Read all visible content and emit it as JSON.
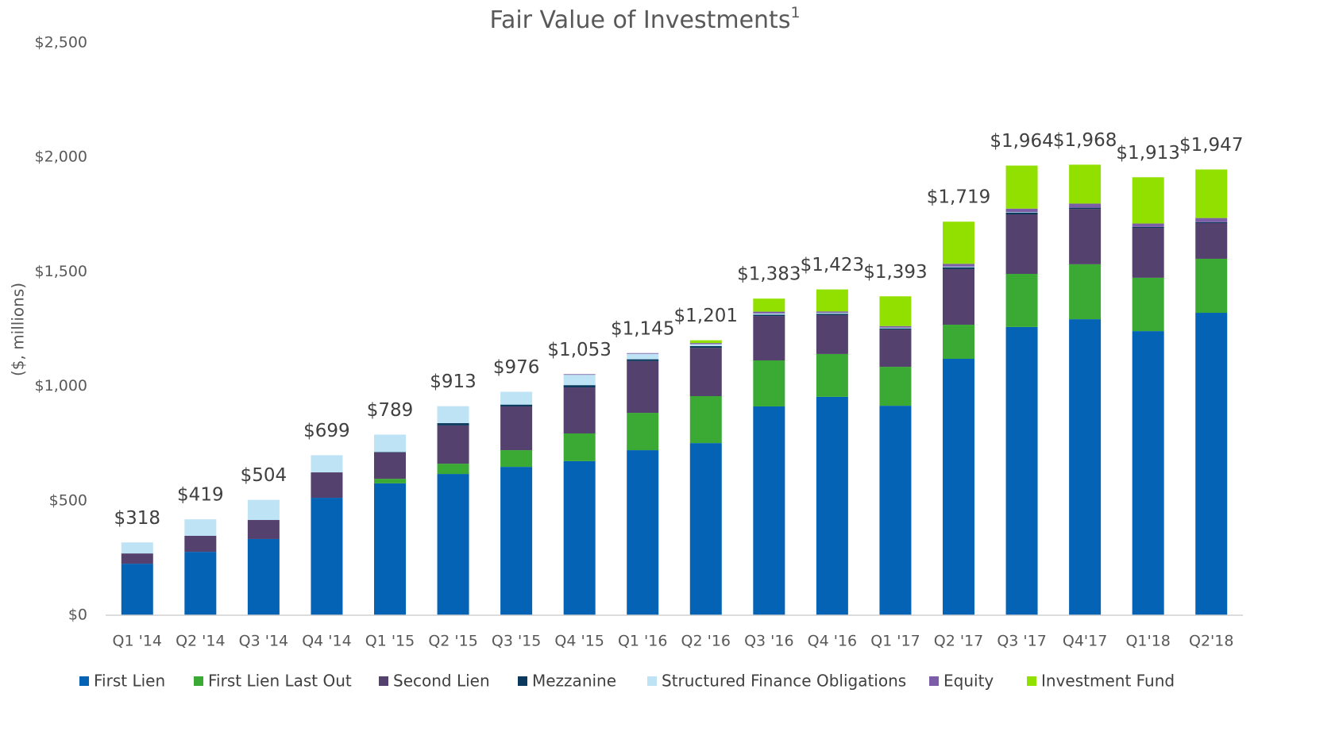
{
  "chart_data": {
    "type": "stacked_bar",
    "title": "Fair Value of Investments",
    "title_footnote": "1",
    "y_label": "($, millions)",
    "categories": [
      "Q1 '14",
      "Q2 '14",
      "Q3 '14",
      "Q4 '14",
      "Q1 '15",
      "Q2 '15",
      "Q3 '15",
      "Q4 '15",
      "Q1 '16",
      "Q2 '16",
      "Q3 '16",
      "Q4 '16",
      "Q1 '17",
      "Q2 '17",
      "Q3 '17",
      "Q4'17",
      "Q1'18",
      "Q2'18"
    ],
    "series": [
      {
        "name": "First Lien",
        "color": "#0563b5",
        "values": [
          225,
          277,
          333,
          513,
          576,
          617,
          648,
          673,
          721,
          752,
          912,
          954,
          915,
          1120,
          1259,
          1293,
          1241,
          1321
        ]
      },
      {
        "name": "First Lien Last Out",
        "color": "#3aaa35",
        "values": [
          0,
          0,
          0,
          0,
          20,
          45,
          73,
          121,
          163,
          205,
          201,
          187,
          170,
          149,
          232,
          240,
          233,
          236
        ]
      },
      {
        "name": "Second Lien",
        "color": "#54416e",
        "values": [
          45,
          70,
          83,
          111,
          115,
          167,
          191,
          201,
          226,
          211,
          194,
          170,
          163,
          243,
          260,
          242,
          218,
          156
        ]
      },
      {
        "name": "Mezzanine",
        "color": "#0b3a5e",
        "values": [
          0,
          0,
          0,
          0,
          2,
          10,
          8,
          10,
          8,
          8,
          6,
          6,
          5,
          8,
          8,
          5,
          4,
          4
        ]
      },
      {
        "name": "Structured Finance Obligations",
        "color": "#bde3f5",
        "values": [
          48,
          72,
          88,
          75,
          76,
          74,
          56,
          45,
          24,
          8,
          5,
          4,
          3,
          3,
          2,
          0,
          0,
          0
        ]
      },
      {
        "name": "Equity",
        "color": "#7b5ea7",
        "values": [
          0,
          0,
          0,
          0,
          0,
          0,
          0,
          3,
          3,
          5,
          8,
          6,
          7,
          12,
          15,
          18,
          15,
          18
        ]
      },
      {
        "name": "Investment Fund",
        "color": "#92e000",
        "values": [
          0,
          0,
          0,
          0,
          0,
          0,
          0,
          0,
          0,
          12,
          57,
          96,
          130,
          184,
          188,
          170,
          202,
          212
        ]
      }
    ],
    "totals": [
      318,
      419,
      504,
      699,
      789,
      913,
      976,
      1053,
      1145,
      1201,
      1383,
      1423,
      1393,
      1719,
      1964,
      1968,
      1913,
      1947
    ],
    "total_labels": [
      "$318",
      "$419",
      "$504",
      "$699",
      "$789",
      "$913",
      "$976",
      "$1,053",
      "$1,145",
      "$1,201",
      "$1,383",
      "$1,423",
      "$1,393",
      "$1,719",
      "$1,964",
      "$1,968",
      "$1,913",
      "$1,947"
    ],
    "ylim": [
      0,
      2500
    ],
    "yticks": [
      {
        "value": 0,
        "label": "$0"
      },
      {
        "value": 500,
        "label": "$500"
      },
      {
        "value": 1000,
        "label": "$1,000"
      },
      {
        "value": 1500,
        "label": "$1,500"
      },
      {
        "value": 2000,
        "label": "$2,000"
      },
      {
        "value": 2500,
        "label": "$2,500"
      }
    ],
    "grid": false,
    "legend": "bottom"
  }
}
